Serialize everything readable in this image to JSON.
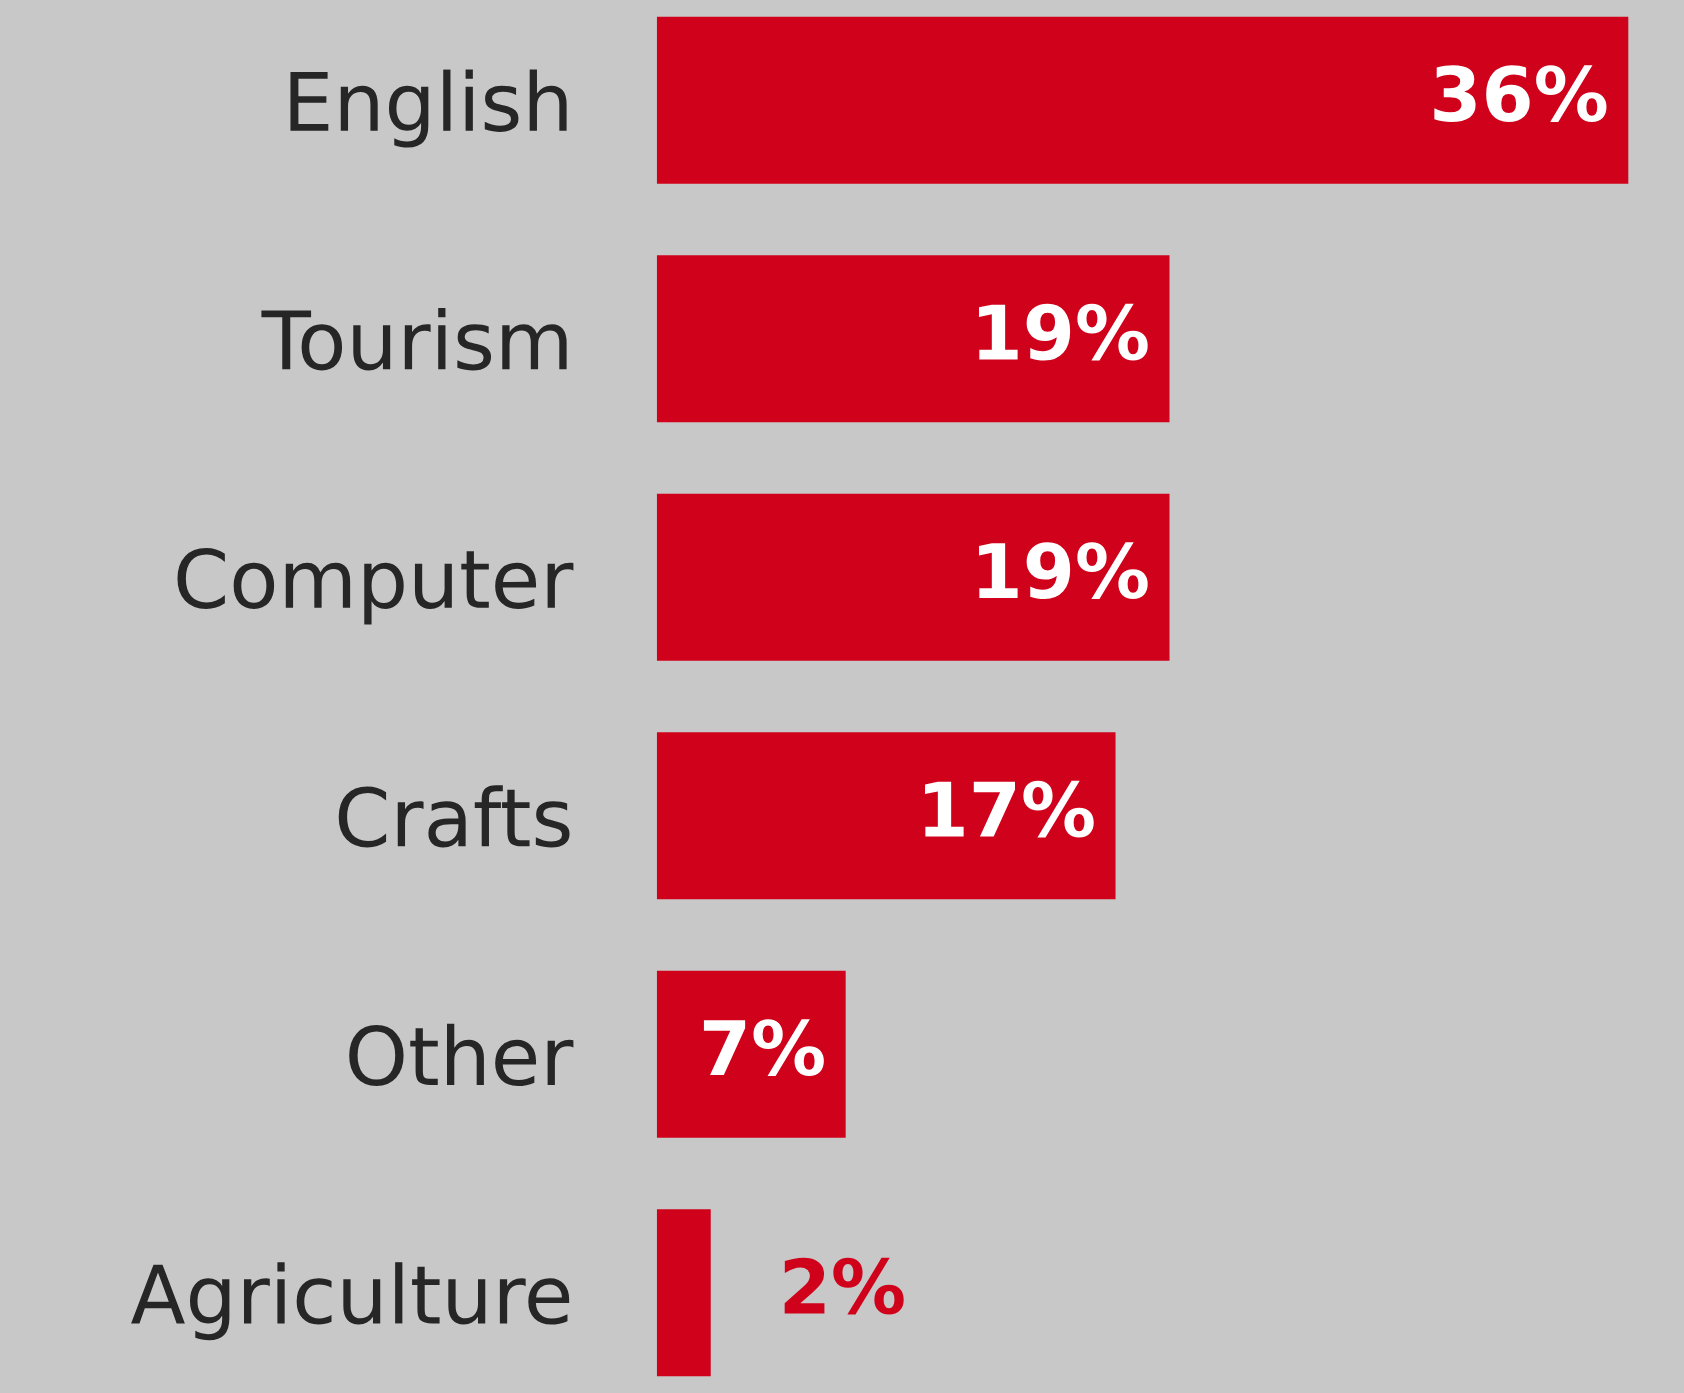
{
  "chart_data": {
    "type": "bar",
    "orientation": "horizontal",
    "categories": [
      "English",
      "Tourism",
      "Computer",
      "Crafts",
      "Other",
      "Agriculture"
    ],
    "values": [
      36,
      19,
      19,
      17,
      7,
      2
    ],
    "value_labels": [
      "36%",
      "19%",
      "19%",
      "17%",
      "7%",
      "2%"
    ],
    "color": "#d0021b"
  }
}
